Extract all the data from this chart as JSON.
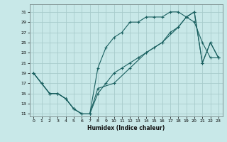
{
  "xlabel": "Humidex (Indice chaleur)",
  "bg_color": "#c8e8e8",
  "grid_color": "#a8cccc",
  "line_color": "#1a6060",
  "xlim": [
    -0.5,
    23.5
  ],
  "ylim": [
    10.5,
    32.5
  ],
  "xticks": [
    0,
    1,
    2,
    3,
    4,
    5,
    6,
    7,
    8,
    9,
    10,
    11,
    12,
    13,
    14,
    15,
    16,
    17,
    18,
    19,
    20,
    21,
    22,
    23
  ],
  "yticks": [
    11,
    13,
    15,
    17,
    19,
    21,
    23,
    25,
    27,
    29,
    31
  ],
  "line1_x": [
    0,
    1,
    2,
    3,
    4,
    5,
    6,
    7,
    8,
    9,
    10,
    11,
    12,
    13,
    14,
    15,
    16,
    17,
    18,
    19,
    20,
    21,
    22,
    23
  ],
  "line1_y": [
    19,
    17,
    15,
    15,
    14,
    12,
    11,
    11,
    20,
    24,
    26,
    27,
    29,
    29,
    30,
    30,
    30,
    31,
    31,
    30,
    29,
    25,
    22,
    22
  ],
  "line2_x": [
    0,
    1,
    2,
    3,
    4,
    5,
    6,
    7,
    8,
    9,
    10,
    11,
    12,
    13,
    14,
    15,
    16,
    17,
    18,
    19,
    20,
    21,
    22,
    23
  ],
  "line2_y": [
    19,
    17,
    15,
    15,
    14,
    12,
    11,
    11,
    15,
    17,
    19,
    20,
    21,
    22,
    23,
    24,
    25,
    27,
    28,
    30,
    31,
    21,
    25,
    22
  ],
  "line3_x": [
    0,
    2,
    3,
    4,
    5,
    6,
    7,
    8,
    10,
    12,
    14,
    16,
    18,
    19,
    20,
    21,
    22,
    23
  ],
  "line3_y": [
    19,
    15,
    15,
    14,
    12,
    11,
    11,
    16,
    17,
    20,
    23,
    25,
    28,
    30,
    31,
    21,
    25,
    22
  ]
}
